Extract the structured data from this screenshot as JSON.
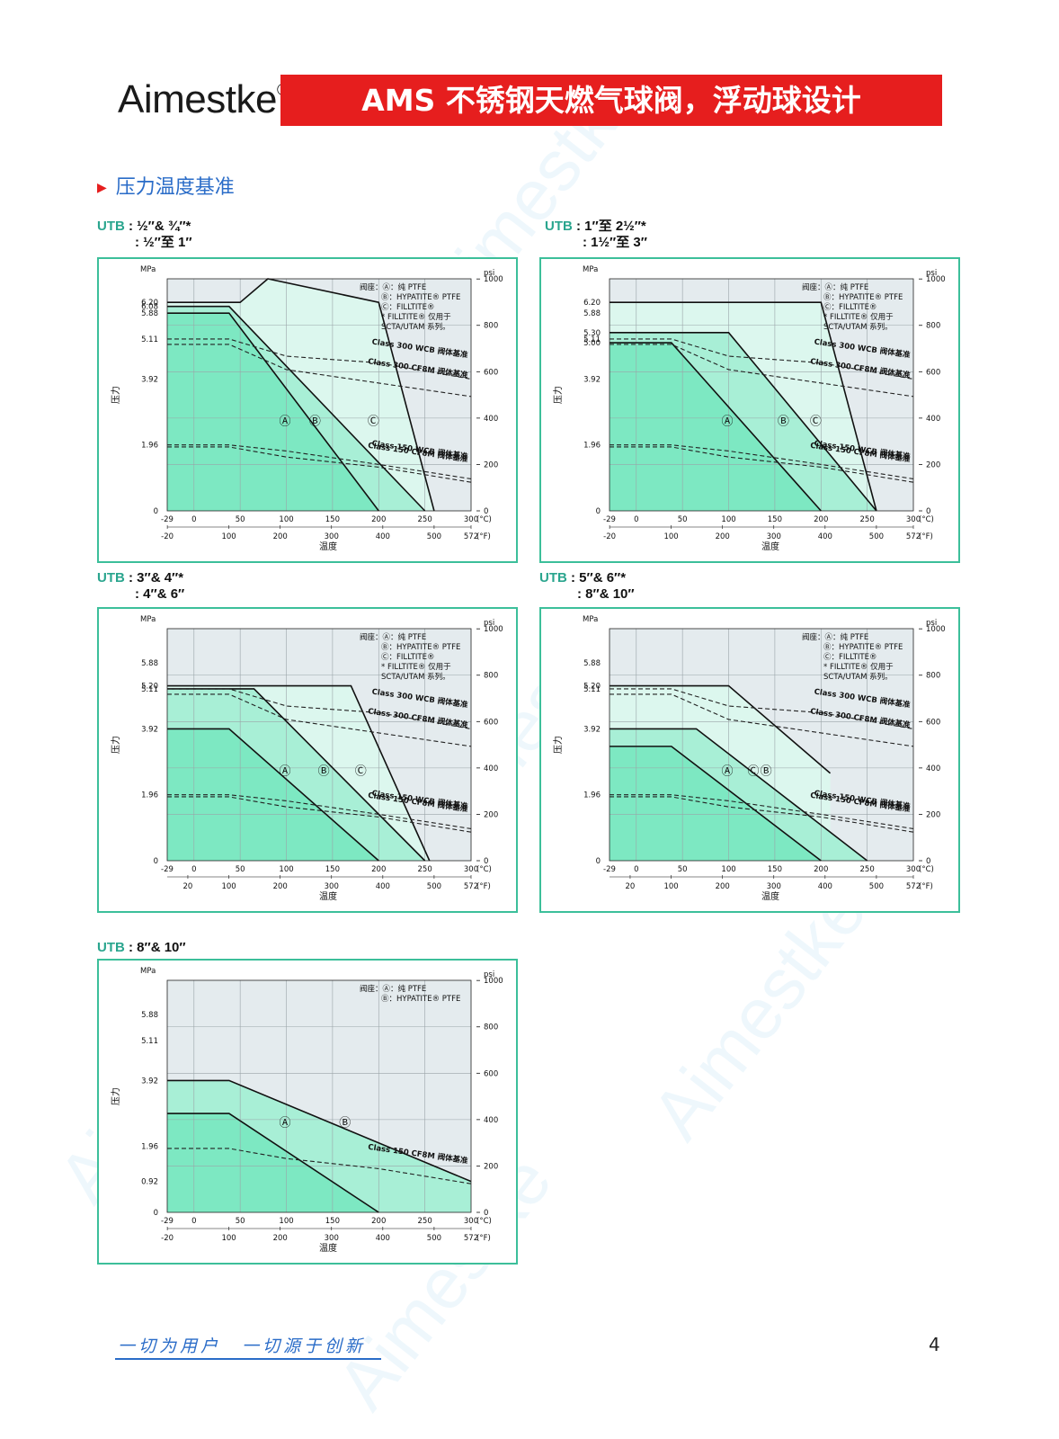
{
  "header": {
    "brand": "Aimestke",
    "brand_mark": "®",
    "banner": "AMS 不锈钢天燃气球阀，浮动球设计",
    "colors": {
      "banner": "#e61e1e",
      "accent": "#2a6cc8",
      "teal": "#2aa58e"
    }
  },
  "section": {
    "title": "压力温度基准",
    "marker_icon": "red-triangle"
  },
  "footer": {
    "slogan": "一切为用户　一切源于创新",
    "page": "4"
  },
  "watermark": "Aimestke",
  "chart_data": [
    {
      "type": "area",
      "utb_key": "UTB",
      "utb_line1": ": ½″& ¾″*",
      "utb_line2": ": ½″至 1″",
      "mpa_label": "MPa",
      "psi_label": "psi",
      "ylabel": "压力",
      "xlabel": "温度",
      "celsius_unit": "(°C)",
      "fahrenheit_unit": "(°F)",
      "c_ticks": [
        "-29",
        "0",
        "50",
        "100",
        "150",
        "200",
        "250",
        "300"
      ],
      "f_ticks": [
        "-20",
        "100",
        "200",
        "300",
        "400",
        "500",
        "572"
      ],
      "psi_ticks": [
        "0",
        "200",
        "400",
        "600",
        "800",
        "1000"
      ],
      "mpa_ticks": [
        "6.20",
        "6.08",
        "5.88",
        "5.11",
        "3.92",
        "1.96",
        "0"
      ],
      "legend": [
        "阀座：Ⓐ：纯 PTFE",
        "Ⓑ：HYPATITE® PTFE",
        "Ⓒ：FILLTITE®",
        "* FILLTITE® 仅用于",
        "SCTA/UTAM 系列。"
      ],
      "regions": [
        {
          "name": "Ⓐ",
          "x": [
            -29,
            38,
            200
          ],
          "y": [
            5.88,
            5.88,
            0
          ]
        },
        {
          "name": "Ⓑ",
          "x": [
            -29,
            38,
            250
          ],
          "y": [
            6.08,
            6.08,
            0
          ]
        },
        {
          "name": "Ⓒ",
          "x": [
            -29,
            50,
            80,
            200,
            260
          ],
          "y": [
            6.2,
            6.2,
            6.9,
            6.2,
            0
          ]
        }
      ],
      "ratings": [
        {
          "name": "Class 300 WCB 阀体基准",
          "x": [
            -29,
            38,
            100,
            200,
            300
          ],
          "y": [
            5.11,
            5.11,
            4.6,
            4.4,
            3.92
          ]
        },
        {
          "name": "Class 300 CF8M 阀体基准",
          "x": [
            -29,
            38,
            100,
            200,
            300
          ],
          "y": [
            4.95,
            4.95,
            4.2,
            3.8,
            3.4
          ]
        },
        {
          "name": "Class 150 WCB 阀体基准",
          "x": [
            -29,
            38,
            100,
            200,
            300
          ],
          "y": [
            1.96,
            1.96,
            1.78,
            1.38,
            0.95
          ]
        },
        {
          "name": "Class 150 CF8M 阀体基准",
          "x": [
            -29,
            38,
            100,
            200,
            300
          ],
          "y": [
            1.9,
            1.9,
            1.6,
            1.3,
            0.85
          ]
        }
      ],
      "xlim": [
        -29,
        300
      ],
      "ylim": [
        0,
        6.9
      ]
    },
    {
      "type": "area",
      "utb_key": "UTB",
      "utb_line1": ": 1″至 2½″*",
      "utb_line2": ": 1½″至 3″",
      "mpa_label": "MPa",
      "psi_label": "psi",
      "ylabel": "压力",
      "xlabel": "温度",
      "celsius_unit": "(°C)",
      "fahrenheit_unit": "(°F)",
      "c_ticks": [
        "-29",
        "0",
        "50",
        "100",
        "150",
        "200",
        "250",
        "300"
      ],
      "f_ticks": [
        "-20",
        "100",
        "200",
        "300",
        "400",
        "500",
        "572"
      ],
      "psi_ticks": [
        "0",
        "200",
        "400",
        "600",
        "800",
        "1000"
      ],
      "mpa_ticks": [
        "6.20",
        "5.88",
        "5.30",
        "5.11",
        "5.00",
        "3.92",
        "1.96",
        "0"
      ],
      "legend": [
        "阀座：Ⓐ：纯 PTFE",
        "Ⓑ：HYPATITE® PTFE",
        "Ⓒ：FILLTITE®",
        "* FILLTITE® 仅用于",
        "SCTA/UTAM 系列。"
      ],
      "regions": [
        {
          "name": "Ⓐ",
          "x": [
            -29,
            38,
            200
          ],
          "y": [
            5.0,
            5.0,
            0
          ]
        },
        {
          "name": "Ⓑ",
          "x": [
            -29,
            100,
            260
          ],
          "y": [
            5.3,
            5.3,
            0
          ]
        },
        {
          "name": "Ⓒ",
          "x": [
            -29,
            200,
            260
          ],
          "y": [
            6.2,
            6.2,
            0
          ]
        }
      ],
      "ratings": [
        {
          "name": "Class 300 WCB 阀体基准",
          "x": [
            -29,
            38,
            100,
            200,
            300
          ],
          "y": [
            5.11,
            5.11,
            4.6,
            4.4,
            3.92
          ]
        },
        {
          "name": "Class 300 CF8M 阀体基准",
          "x": [
            -29,
            38,
            100,
            200,
            300
          ],
          "y": [
            4.95,
            4.95,
            4.2,
            3.8,
            3.4
          ]
        },
        {
          "name": "Class 150 WCB 阀体基准",
          "x": [
            -29,
            38,
            100,
            200,
            300
          ],
          "y": [
            1.96,
            1.96,
            1.78,
            1.38,
            0.95
          ]
        },
        {
          "name": "Class 150 CF8M 阀体基准",
          "x": [
            -29,
            38,
            100,
            200,
            300
          ],
          "y": [
            1.9,
            1.9,
            1.6,
            1.3,
            0.85
          ]
        }
      ],
      "xlim": [
        -29,
        300
      ],
      "ylim": [
        0,
        6.9
      ]
    },
    {
      "type": "area",
      "utb_key": "UTB",
      "utb_line1": ": 3″& 4″*",
      "utb_line2": ": 4″& 6″",
      "mpa_label": "MPa",
      "psi_label": "psi",
      "ylabel": "压力",
      "xlabel": "温度",
      "celsius_unit": "(°C)",
      "fahrenheit_unit": "(°F)",
      "c_ticks": [
        "-29",
        "0",
        "50",
        "100",
        "150",
        "200",
        "250",
        "300"
      ],
      "f_ticks": [
        "20",
        "100",
        "200",
        "300",
        "400",
        "500",
        "572"
      ],
      "psi_ticks": [
        "0",
        "200",
        "400",
        "600",
        "800",
        "1000"
      ],
      "mpa_ticks": [
        "5.88",
        "5.20",
        "5.11",
        "3.92",
        "1.96",
        "0"
      ],
      "legend": [
        "阀座：Ⓐ：纯 PTFE",
        "Ⓑ：HYPATITE® PTFE",
        "Ⓒ：FILLTITE®",
        "* FILLTITE® 仅用于",
        "SCTA/UTAM 系列。"
      ],
      "regions": [
        {
          "name": "Ⓐ",
          "x": [
            -29,
            38,
            200
          ],
          "y": [
            3.92,
            3.92,
            0
          ]
        },
        {
          "name": "Ⓑ",
          "x": [
            -29,
            65,
            250
          ],
          "y": [
            5.11,
            5.11,
            0
          ]
        },
        {
          "name": "Ⓒ",
          "x": [
            -29,
            170,
            255
          ],
          "y": [
            5.2,
            5.2,
            0
          ]
        }
      ],
      "ratings": [
        {
          "name": "Class 300 WCB 阀体基准",
          "x": [
            -29,
            38,
            100,
            200,
            300
          ],
          "y": [
            5.11,
            5.11,
            4.6,
            4.4,
            3.92
          ]
        },
        {
          "name": "Class 300 CF8M 阀体基准",
          "x": [
            -29,
            38,
            100,
            200,
            300
          ],
          "y": [
            4.95,
            4.95,
            4.2,
            3.8,
            3.4
          ]
        },
        {
          "name": "Class 150 WCB 阀体基准",
          "x": [
            -29,
            38,
            100,
            200,
            300
          ],
          "y": [
            1.96,
            1.96,
            1.78,
            1.38,
            0.95
          ]
        },
        {
          "name": "Class 150 CF8M 阀体基准",
          "x": [
            -29,
            38,
            100,
            200,
            300
          ],
          "y": [
            1.9,
            1.9,
            1.6,
            1.3,
            0.85
          ]
        }
      ],
      "xlim": [
        -29,
        300
      ],
      "ylim": [
        0,
        6.9
      ]
    },
    {
      "type": "area",
      "utb_key": "UTB",
      "utb_line1": ": 5″& 6″*",
      "utb_line2": ": 8″& 10″",
      "mpa_label": "MPa",
      "psi_label": "psi",
      "ylabel": "压力",
      "xlabel": "温度",
      "celsius_unit": "(°C)",
      "fahrenheit_unit": "(°F)",
      "c_ticks": [
        "-29",
        "0",
        "50",
        "100",
        "150",
        "200",
        "250",
        "300"
      ],
      "f_ticks": [
        "20",
        "100",
        "200",
        "300",
        "400",
        "500",
        "572"
      ],
      "psi_ticks": [
        "0",
        "200",
        "400",
        "600",
        "800",
        "1000"
      ],
      "mpa_ticks": [
        "5.88",
        "5.20",
        "5.11",
        "3.92",
        "1.96",
        "0"
      ],
      "legend": [
        "阀座：Ⓐ：纯 PTFE",
        "Ⓑ：HYPATITE® PTFE",
        "Ⓒ：FILLTITE®",
        "* FILLTITE® 仅用于",
        "SCTA/UTAM 系列。"
      ],
      "regions": [
        {
          "name": "Ⓐ",
          "x": [
            -29,
            38,
            200
          ],
          "y": [
            3.4,
            3.4,
            0
          ]
        },
        {
          "name": "Ⓑ",
          "x": [
            -29,
            65,
            250
          ],
          "y": [
            3.92,
            3.92,
            0
          ]
        },
        {
          "name": "Ⓒ",
          "x": [
            -29,
            100,
            210
          ],
          "y": [
            5.2,
            5.2,
            2.6
          ]
        }
      ],
      "ratings": [
        {
          "name": "Class 300 WCB 阀体基准",
          "x": [
            -29,
            38,
            100,
            200,
            300
          ],
          "y": [
            5.11,
            5.11,
            4.6,
            4.4,
            3.92
          ]
        },
        {
          "name": "Class 300 CF8M 阀体基准",
          "x": [
            -29,
            38,
            100,
            200,
            300
          ],
          "y": [
            4.95,
            4.95,
            4.2,
            3.8,
            3.4
          ]
        },
        {
          "name": "Class 150 WCB 阀体基准",
          "x": [
            -29,
            38,
            100,
            200,
            300
          ],
          "y": [
            1.96,
            1.96,
            1.78,
            1.38,
            0.95
          ]
        },
        {
          "name": "Class 150 CF8M 阀体基准",
          "x": [
            -29,
            38,
            100,
            200,
            300
          ],
          "y": [
            1.9,
            1.9,
            1.6,
            1.3,
            0.85
          ]
        }
      ],
      "xlim": [
        -29,
        300
      ],
      "ylim": [
        0,
        6.9
      ]
    },
    {
      "type": "area",
      "utb_key": "UTB",
      "utb_line1": ": 8″& 10″",
      "utb_line2": "",
      "mpa_label": "MPa",
      "psi_label": "psi",
      "ylabel": "压力",
      "xlabel": "温度",
      "celsius_unit": "(°C)",
      "fahrenheit_unit": "(°F)",
      "c_ticks": [
        "-29",
        "0",
        "50",
        "100",
        "150",
        "200",
        "250",
        "300"
      ],
      "f_ticks": [
        "-20",
        "100",
        "200",
        "300",
        "400",
        "500",
        "572"
      ],
      "psi_ticks": [
        "0",
        "200",
        "400",
        "600",
        "800",
        "1000"
      ],
      "mpa_ticks": [
        "5.88",
        "5.11",
        "3.92",
        "1.96",
        "0.92",
        "0"
      ],
      "legend": [
        "阀座：Ⓐ：纯 PTFE",
        "Ⓑ：HYPATITE® PTFE"
      ],
      "regions": [
        {
          "name": "Ⓐ",
          "x": [
            -29,
            38,
            200
          ],
          "y": [
            2.94,
            2.94,
            0
          ]
        },
        {
          "name": "Ⓑ",
          "x": [
            -29,
            38,
            300
          ],
          "y": [
            3.92,
            3.92,
            0.92
          ]
        }
      ],
      "ratings": [
        {
          "name": "Class 150 CF8M 阀体基准",
          "x": [
            -29,
            38,
            100,
            200,
            300
          ],
          "y": [
            1.9,
            1.9,
            1.6,
            1.3,
            0.85
          ]
        }
      ],
      "xlim": [
        -29,
        300
      ],
      "ylim": [
        0,
        6.9
      ]
    }
  ]
}
